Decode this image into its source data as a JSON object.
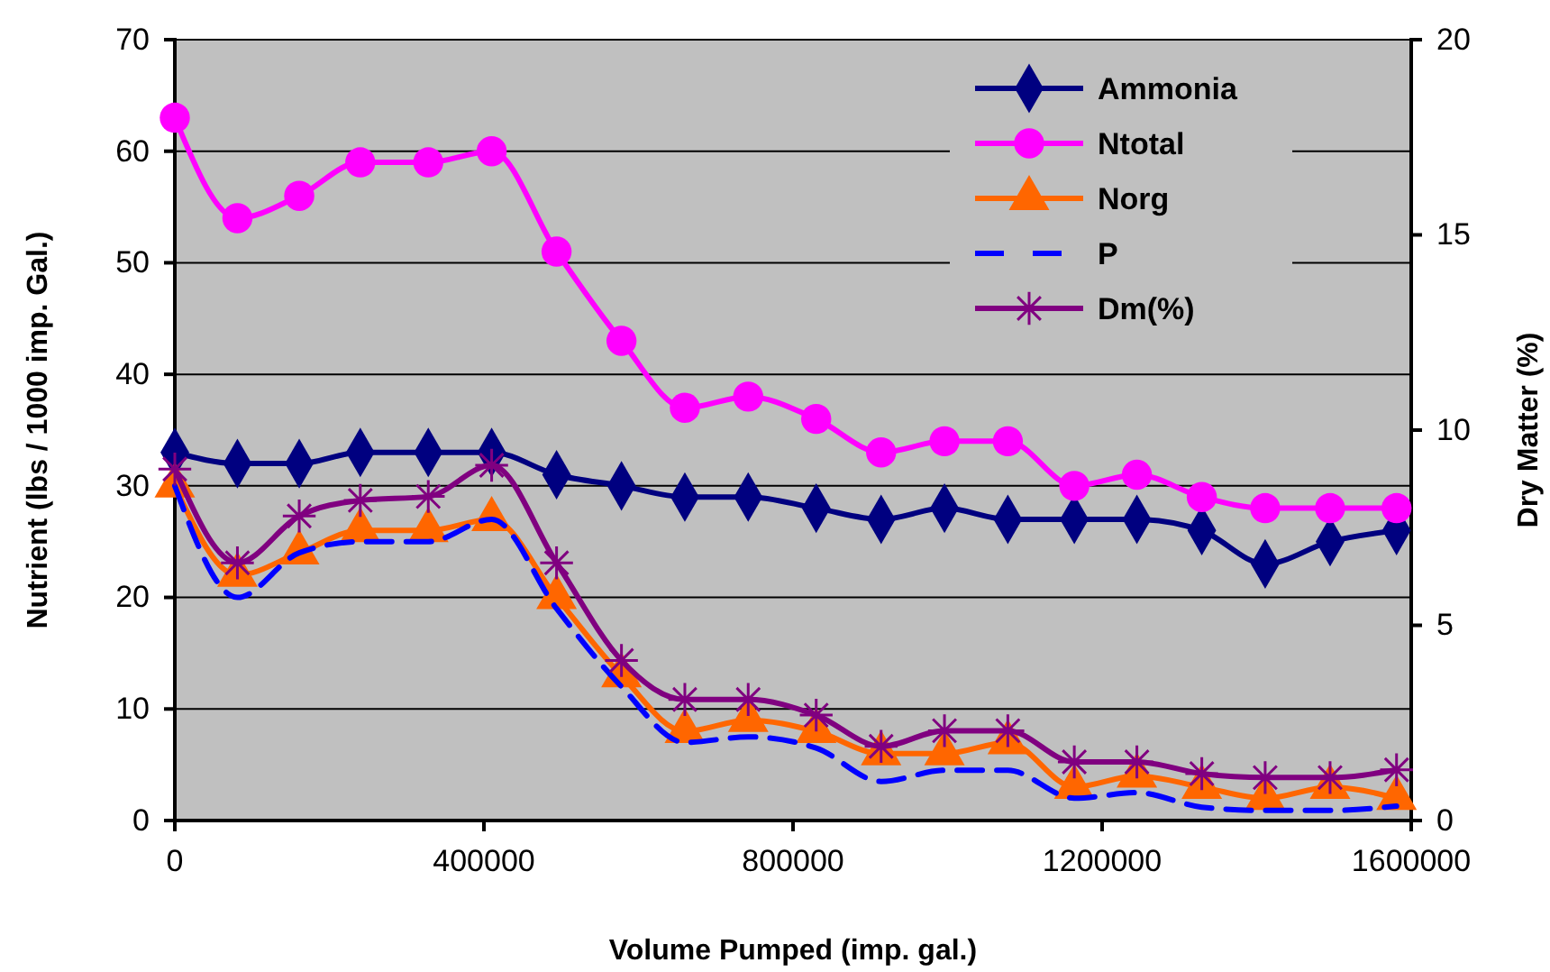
{
  "chart_data": {
    "type": "line",
    "xlabel": "Volume Pumped (imp. gal.)",
    "ylabel": "Nutrient (lbs / 1000 imp. Gal.)",
    "y2label": "Dry Matter (%)",
    "x": [
      0,
      81000,
      161000,
      240000,
      328000,
      410000,
      494000,
      578000,
      660000,
      742000,
      830000,
      914000,
      996000,
      1078000,
      1164000,
      1245000,
      1329000,
      1411000,
      1495000,
      1581000
    ],
    "xlim": [
      0,
      1600000
    ],
    "xticks": [
      0,
      400000,
      800000,
      1200000,
      1600000
    ],
    "ylim": [
      0,
      70
    ],
    "yticks": [
      0,
      10,
      20,
      30,
      40,
      50,
      60,
      70
    ],
    "y2lim": [
      0,
      20
    ],
    "y2ticks": [
      0,
      5,
      10,
      15,
      20
    ],
    "grid": "y",
    "legend": "top right",
    "series": [
      {
        "name": "Ammonia",
        "color": "#000080",
        "marker": "diamond",
        "line_style": "solid",
        "values": [
          33,
          32,
          32,
          33,
          33,
          33,
          31,
          30,
          29,
          29,
          28,
          27,
          28,
          27,
          27,
          27,
          26,
          23,
          25,
          26
        ]
      },
      {
        "name": "Ntotal",
        "color": "#ff00ff",
        "marker": "circle",
        "line_style": "solid",
        "values": [
          63,
          54,
          56,
          59,
          59,
          60,
          51,
          43,
          37,
          38,
          36,
          33,
          34,
          34,
          30,
          31,
          29,
          28,
          28,
          28
        ]
      },
      {
        "name": "Norg",
        "color": "#ff6600",
        "marker": "triangle",
        "line_style": "solid",
        "values": [
          30,
          22,
          24,
          26,
          26,
          27,
          20,
          13,
          8,
          9,
          8,
          6,
          6,
          7,
          3,
          4,
          3,
          2,
          3,
          2
        ]
      },
      {
        "name": "P",
        "color": "#0000ff",
        "marker": "none",
        "line_style": "dashed",
        "values": [
          30,
          20,
          24,
          25,
          25,
          27,
          19,
          12,
          7,
          7.5,
          6.5,
          3.5,
          4.5,
          4.5,
          2,
          2.5,
          1.2,
          0.9,
          0.9,
          1.3
        ]
      },
      {
        "name": "Dm(%)",
        "color": "#800080",
        "marker": "cross",
        "line_style": "solid",
        "axis": "y2",
        "values": [
          9,
          6.6,
          7.8,
          8.2,
          8.3,
          9.1,
          6.6,
          4.1,
          3.1,
          3.1,
          2.7,
          1.9,
          2.3,
          2.3,
          1.5,
          1.5,
          1.2,
          1.1,
          1.1,
          1.3
        ]
      }
    ]
  }
}
